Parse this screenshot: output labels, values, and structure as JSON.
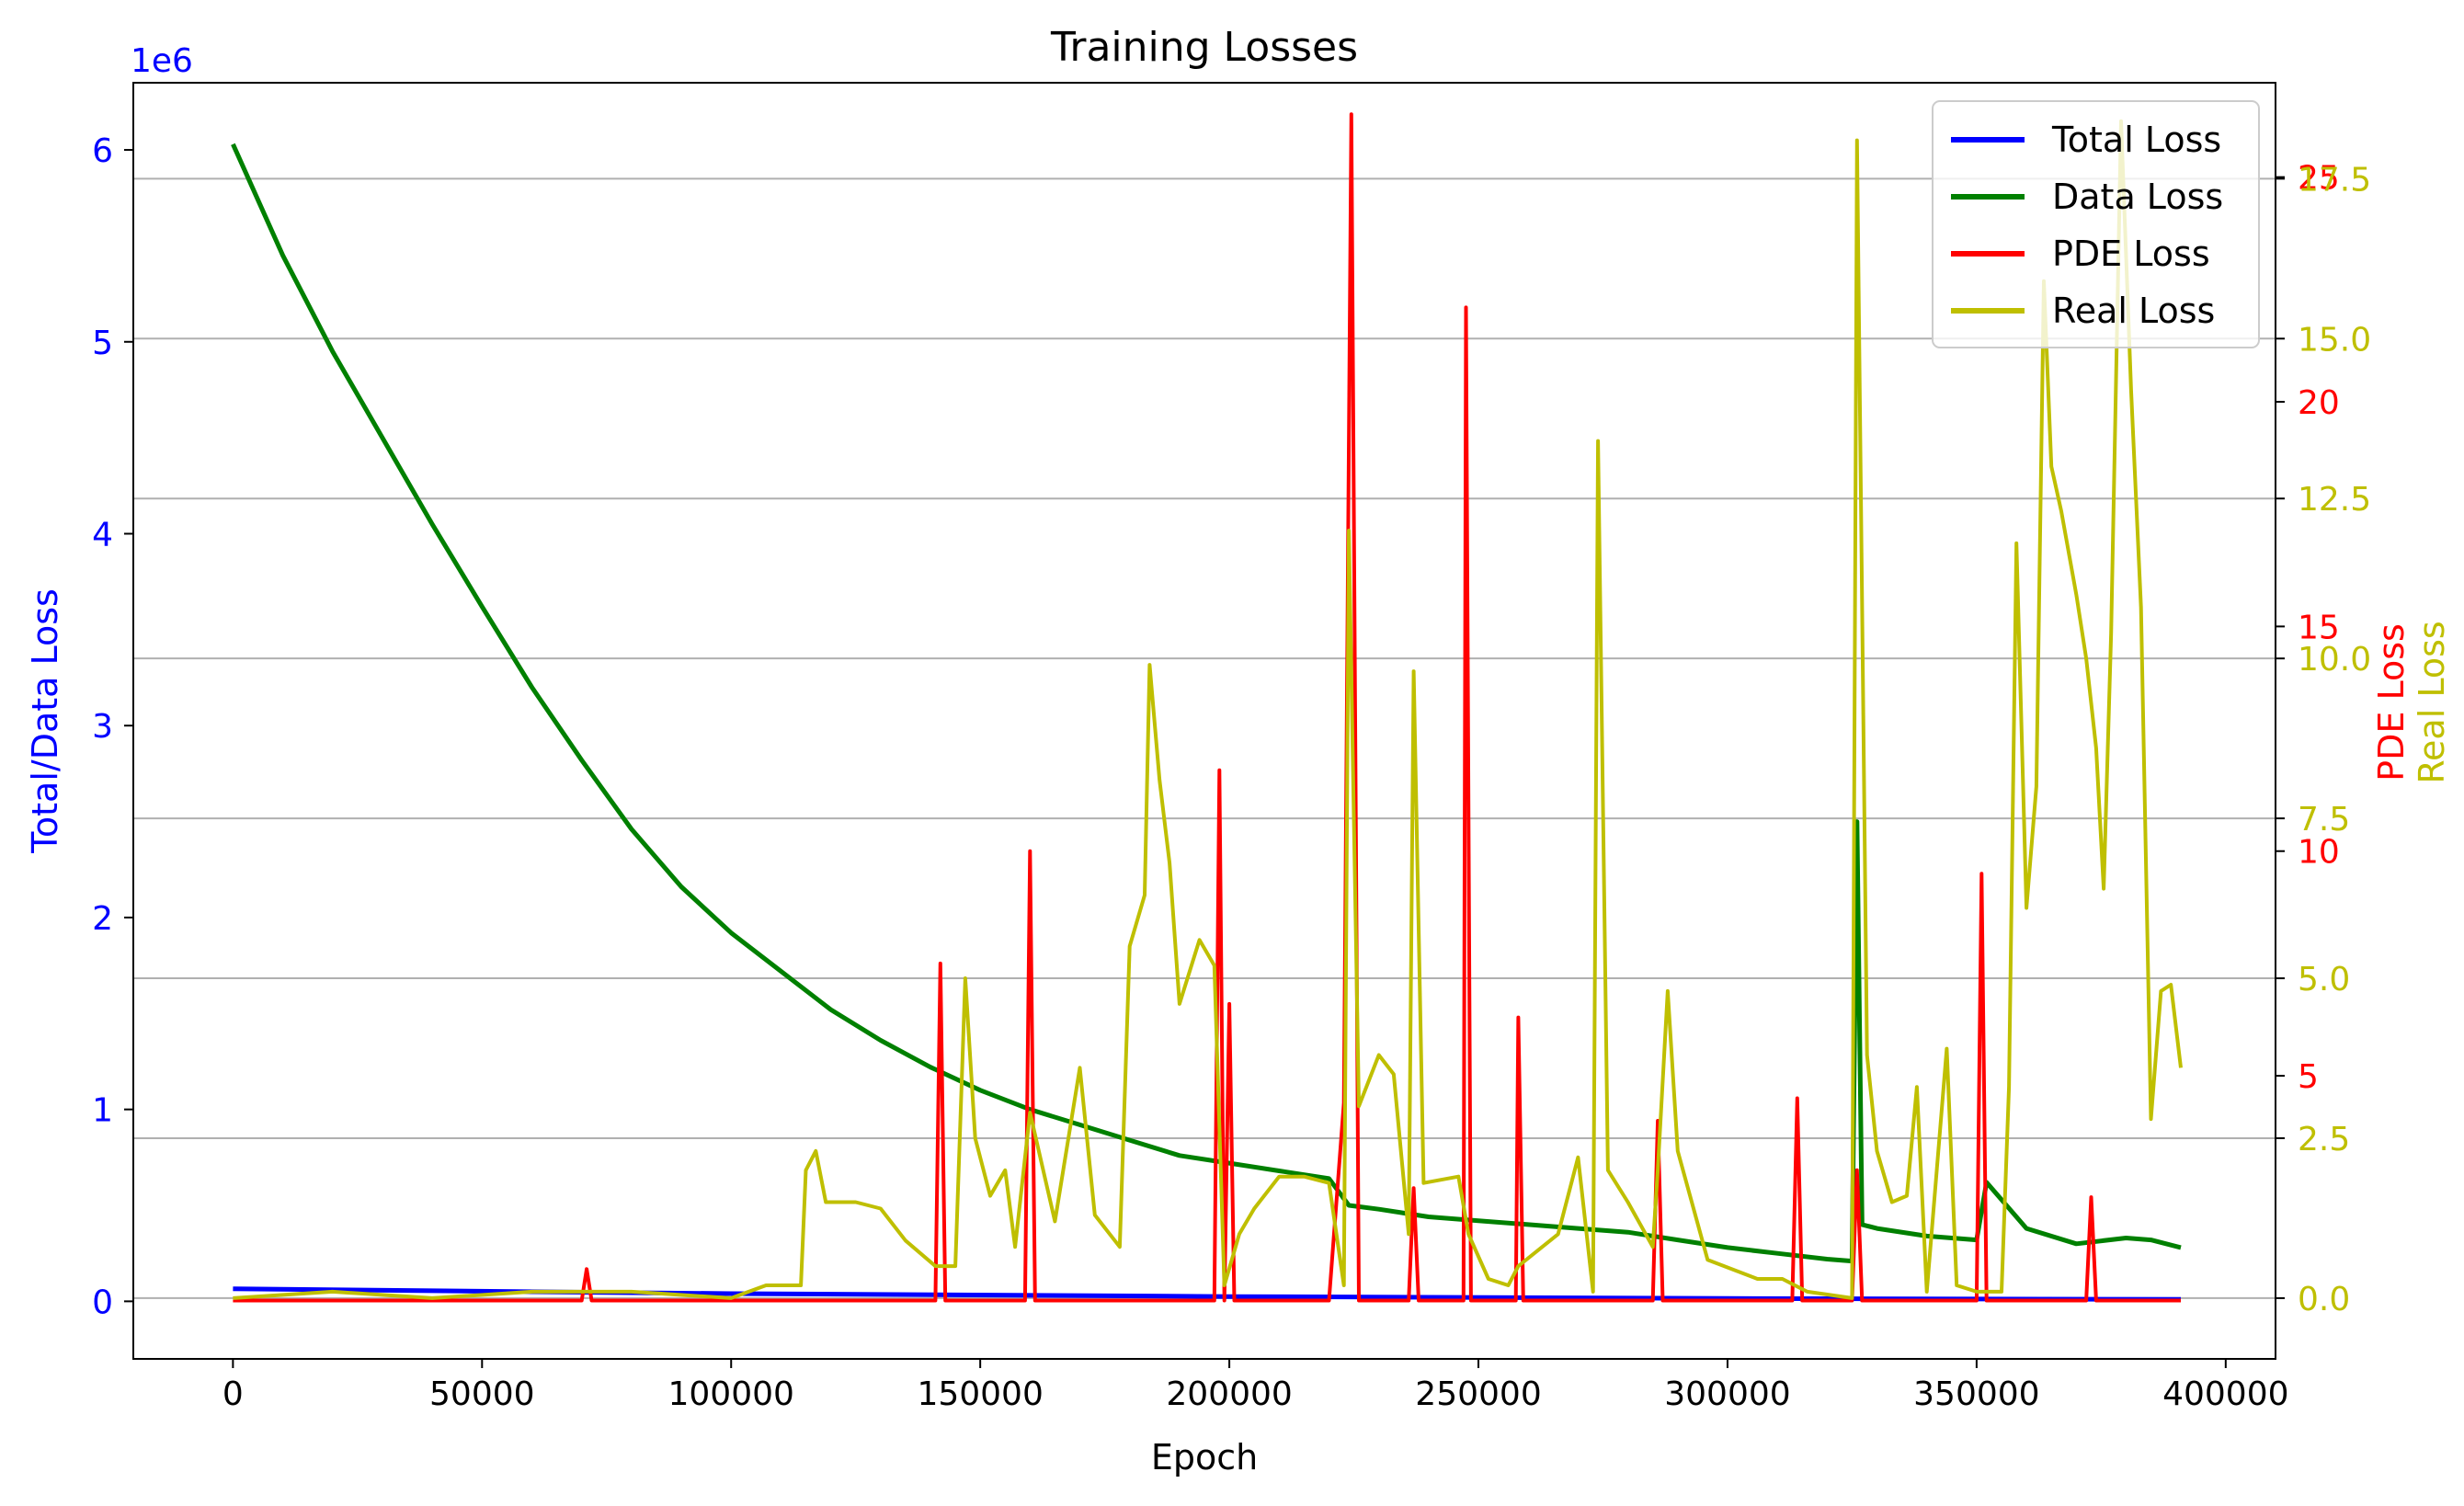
{
  "chart_data": {
    "type": "line",
    "title": "Training Losses",
    "xlabel": "Epoch",
    "xlim": [
      -20000,
      410000
    ],
    "x_ticks": [
      0,
      50000,
      100000,
      150000,
      200000,
      250000,
      300000,
      350000,
      400000
    ],
    "left_axis": {
      "label": "Total/Data Loss",
      "color": "#0000ff",
      "scale_note": "1e6",
      "ylim": [
        -0.3,
        6.35
      ],
      "ticks": [
        0,
        1,
        2,
        3,
        4,
        5,
        6
      ]
    },
    "right_axis_pde": {
      "label": "PDE Loss",
      "color": "#ff0000",
      "ylim": [
        -1.3,
        27.1
      ],
      "ticks": [
        5,
        10,
        15,
        20,
        25
      ]
    },
    "right_axis_real": {
      "label": "Real Loss",
      "color": "#bfbf00",
      "ylim": [
        -0.95,
        19.0
      ],
      "ticks": [
        "0.0",
        "2.5",
        "5.0",
        "7.5",
        "10.0",
        "12.5",
        "15.0",
        "17.5"
      ]
    },
    "grid": "horizontal lines at Real Loss ticks",
    "legend_position": "top-right",
    "series": [
      {
        "name": "Total Loss",
        "color": "#0000ff",
        "axis": "left",
        "x": [
          0,
          100000,
          200000,
          300000,
          391000
        ],
        "y": [
          0.065,
          0.04,
          0.025,
          0.015,
          0.01
        ]
      },
      {
        "name": "Data Loss",
        "color": "#008000",
        "axis": "left",
        "x": [
          0,
          10000,
          20000,
          30000,
          40000,
          50000,
          60000,
          70000,
          80000,
          90000,
          100000,
          110000,
          120000,
          130000,
          140000,
          150000,
          160000,
          170000,
          180000,
          190000,
          200000,
          210000,
          220000,
          224000,
          230000,
          240000,
          250000,
          260000,
          270000,
          280000,
          290000,
          300000,
          310000,
          320000,
          325000,
          326000,
          327000,
          330000,
          340000,
          350000,
          352000,
          360000,
          370000,
          380000,
          385000,
          391000
        ],
        "y": [
          6.03,
          5.45,
          4.95,
          4.5,
          4.05,
          3.62,
          3.2,
          2.82,
          2.46,
          2.16,
          1.92,
          1.72,
          1.52,
          1.36,
          1.22,
          1.1,
          1.0,
          0.92,
          0.84,
          0.76,
          0.72,
          0.68,
          0.64,
          0.5,
          0.48,
          0.44,
          0.42,
          0.4,
          0.38,
          0.36,
          0.32,
          0.28,
          0.25,
          0.22,
          0.21,
          2.5,
          0.4,
          0.38,
          0.34,
          0.32,
          0.62,
          0.38,
          0.3,
          0.33,
          0.32,
          0.28
        ]
      },
      {
        "name": "PDE Loss",
        "color": "#ff0000",
        "axis": "right_pde",
        "x": [
          0,
          70000,
          71000,
          72000,
          141000,
          142000,
          143000,
          159000,
          160000,
          161000,
          175000,
          197000,
          198000,
          199000,
          200000,
          201000,
          202000,
          220000,
          223000,
          224500,
          226000,
          236000,
          237000,
          238000,
          247000,
          247500,
          248500,
          250000,
          257500,
          258000,
          259000,
          270000,
          285000,
          286000,
          287000,
          300000,
          313000,
          314000,
          315000,
          325000,
          326000,
          327000,
          333000,
          350000,
          351000,
          352000,
          372000,
          373000,
          374000,
          385000,
          391000
        ],
        "y": [
          0,
          0,
          0.7,
          0,
          0,
          7.5,
          0,
          0,
          10,
          0,
          0,
          0,
          11.8,
          0,
          6.6,
          0,
          0,
          0,
          4.4,
          26.4,
          0,
          0,
          2.5,
          0,
          0,
          22.1,
          0,
          0,
          0,
          6.3,
          0,
          0,
          0,
          4.0,
          0,
          0,
          0,
          4.5,
          0,
          0,
          2.9,
          0,
          0,
          0,
          9.5,
          0,
          0,
          2.3,
          0,
          0,
          0
        ]
      },
      {
        "name": "Real Loss",
        "color": "#bfbf00",
        "axis": "right_real",
        "x": [
          0,
          20000,
          40000,
          60000,
          80000,
          100000,
          107000,
          114000,
          115000,
          117000,
          119000,
          125000,
          130000,
          135000,
          141000,
          145000,
          147000,
          149000,
          152000,
          155000,
          157000,
          160000,
          165000,
          170000,
          173000,
          178000,
          180000,
          183000,
          184000,
          186000,
          188000,
          190000,
          194000,
          197000,
          199000,
          202000,
          205000,
          210000,
          215000,
          220000,
          223000,
          224000,
          226000,
          230000,
          233000,
          236000,
          237000,
          239000,
          246000,
          248000,
          252000,
          256000,
          258000,
          266000,
          270000,
          273000,
          274000,
          276000,
          280000,
          285000,
          286000,
          288000,
          290000,
          296000,
          306000,
          311000,
          316000,
          325000,
          326000,
          328000,
          330000,
          333000,
          336000,
          338000,
          340000,
          344000,
          346000,
          350000,
          353000,
          355000,
          356500,
          358000,
          360000,
          362000,
          363500,
          365000,
          367000,
          370000,
          372000,
          374000,
          375500,
          377000,
          379000,
          381000,
          383000,
          385000,
          387000,
          389000,
          391000
        ],
        "y": [
          0,
          0.1,
          0,
          0.1,
          0.1,
          0,
          0.2,
          0.2,
          2.0,
          2.3,
          1.5,
          1.5,
          1.4,
          0.9,
          0.5,
          0.5,
          5.0,
          2.5,
          1.6,
          2.0,
          0.8,
          2.9,
          1.2,
          3.6,
          1.3,
          0.8,
          5.5,
          6.3,
          9.9,
          8.1,
          6.8,
          4.6,
          5.6,
          5.2,
          0.2,
          1.0,
          1.4,
          1.9,
          1.9,
          1.8,
          0.2,
          12.0,
          3.0,
          3.8,
          3.5,
          1.0,
          9.8,
          1.8,
          1.9,
          1.0,
          0.3,
          0.2,
          0.5,
          1.0,
          2.2,
          0.1,
          13.4,
          2.0,
          1.5,
          0.8,
          2.0,
          4.8,
          2.3,
          0.6,
          0.3,
          0.3,
          0.1,
          0.0,
          18.1,
          3.8,
          2.3,
          1.5,
          1.6,
          3.3,
          0.1,
          3.9,
          0.2,
          0.1,
          0.1,
          0.1,
          3.3,
          11.8,
          6.1,
          8.0,
          15.9,
          13.0,
          12.3,
          11.0,
          10.0,
          8.6,
          6.4,
          10.4,
          18.4,
          14.2,
          10.8,
          2.8,
          4.8,
          4.9,
          3.6
        ]
      }
    ]
  }
}
